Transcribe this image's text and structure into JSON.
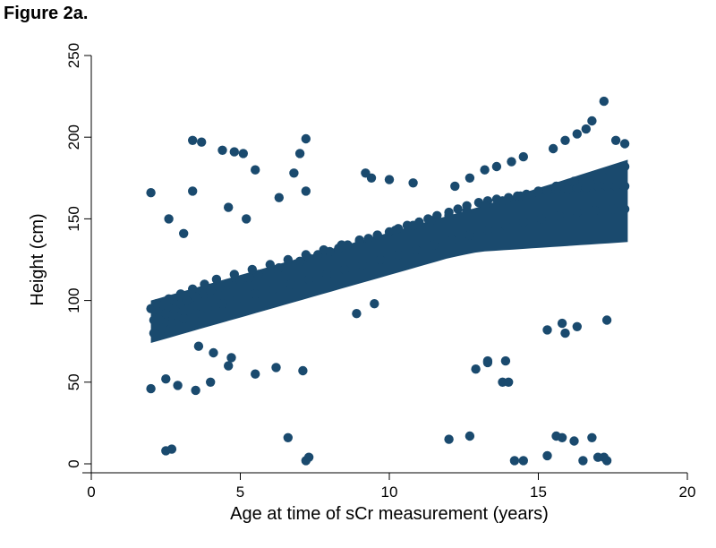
{
  "figure_label": "Figure 2a.",
  "chart_data": {
    "type": "scatter",
    "title": "",
    "xlabel": "Age at time of sCr measurement (years)",
    "ylabel": "Height (cm)",
    "xlim": [
      0,
      20
    ],
    "ylim": [
      0,
      250
    ],
    "xticks": [
      0,
      5,
      10,
      15,
      20
    ],
    "yticks": [
      0,
      50,
      100,
      150,
      200,
      250
    ],
    "grid": false,
    "marker_color": "#1a4a6e",
    "series": [
      {
        "name": "",
        "x": [
          2.1,
          2.3,
          2.5,
          2.8,
          3.0,
          3.2,
          3.5,
          3.8,
          4.0,
          4.3,
          4.6,
          5.0,
          5.3,
          5.6,
          6.0,
          6.3,
          6.6,
          7.0,
          7.3,
          7.6,
          8.0,
          8.3,
          8.6,
          9.0,
          9.3,
          9.6,
          10.0,
          10.3,
          10.6,
          11.0,
          11.3,
          11.6,
          12.0,
          12.3,
          12.6,
          13.0,
          13.3,
          13.6,
          14.0,
          14.3,
          14.6,
          15.0,
          15.3,
          15.6,
          16.0,
          16.3,
          16.6,
          17.0,
          17.3,
          17.6,
          17.9,
          2.1,
          2.4,
          2.7,
          3.1,
          3.5,
          3.9,
          4.4,
          4.9,
          5.5,
          6.1,
          6.7,
          7.3,
          7.9,
          8.5,
          9.1,
          9.7,
          10.3,
          10.9,
          11.5,
          12.1,
          12.7,
          13.3,
          13.9,
          14.5,
          15.1,
          15.7,
          16.3,
          16.9,
          17.5,
          17.9,
          2.0,
          2.2,
          2.6,
          3.0,
          3.4,
          3.8,
          4.2,
          4.8,
          5.4,
          6.0,
          6.6,
          7.2,
          7.8,
          8.4,
          9.0,
          9.6,
          10.2,
          10.8,
          11.4,
          12.0,
          12.6,
          13.2,
          13.8,
          14.4,
          15.0,
          15.6,
          16.2,
          16.8,
          17.4,
          17.9,
          2.0,
          3.4,
          3.7,
          3.4,
          4.4,
          4.8,
          5.1,
          5.5,
          7.0,
          7.2,
          6.8,
          2.6,
          3.1,
          4.6,
          5.2,
          6.3,
          7.2,
          9.2,
          9.4,
          10.0,
          10.8,
          12.2,
          12.7,
          13.2,
          13.6,
          14.1,
          14.5,
          15.5,
          15.9,
          16.3,
          16.6,
          16.8,
          17.2,
          17.6,
          17.9,
          15.3,
          15.8,
          16.3,
          15.9,
          17.3,
          2.5,
          2.7,
          6.6,
          7.2,
          7.3,
          12.0,
          12.7,
          14.2,
          14.5,
          15.3,
          15.6,
          15.8,
          16.2,
          16.5,
          16.8,
          17.2,
          17.3,
          17.0,
          12.9,
          13.3,
          13.8,
          13.3,
          13.9,
          14.0,
          2.0,
          2.5,
          2.9,
          3.5,
          4.0,
          4.7,
          5.5,
          6.2,
          7.1,
          8.9,
          9.5,
          4.1,
          4.6,
          3.6
        ],
        "y": [
          88,
          90,
          92,
          95,
          98,
          100,
          102,
          104,
          106,
          108,
          110,
          112,
          114,
          116,
          118,
          120,
          122,
          124,
          126,
          128,
          130,
          132,
          134,
          136,
          138,
          140,
          142,
          144,
          146,
          148,
          150,
          152,
          154,
          156,
          158,
          160,
          161,
          162,
          163,
          164,
          165,
          166,
          167,
          168,
          168,
          169,
          169,
          170,
          170,
          170,
          170,
          80,
          83,
          86,
          89,
          92,
          95,
          98,
          101,
          104,
          107,
          110,
          113,
          116,
          119,
          122,
          125,
          128,
          131,
          134,
          137,
          140,
          143,
          146,
          148,
          150,
          152,
          154,
          155,
          156,
          156,
          95,
          98,
          101,
          104,
          107,
          110,
          113,
          116,
          119,
          122,
          125,
          128,
          131,
          134,
          137,
          140,
          143,
          146,
          149,
          152,
          155,
          158,
          161,
          164,
          167,
          170,
          173,
          176,
          179,
          182,
          166,
          198,
          197,
          167,
          192,
          191,
          190,
          180,
          190,
          199,
          178,
          150,
          141,
          157,
          150,
          163,
          167,
          178,
          175,
          174,
          172,
          170,
          175,
          180,
          182,
          185,
          188,
          193,
          198,
          202,
          205,
          210,
          222,
          198,
          196,
          82,
          86,
          84,
          80,
          88,
          8,
          9,
          16,
          2,
          4,
          15,
          17,
          2,
          2,
          5,
          17,
          16,
          14,
          2,
          16,
          4,
          2,
          4,
          58,
          62,
          50,
          63,
          63,
          50,
          46,
          52,
          48,
          45,
          50,
          65,
          55,
          59,
          57,
          92,
          98,
          68,
          60,
          72
        ]
      }
    ]
  }
}
